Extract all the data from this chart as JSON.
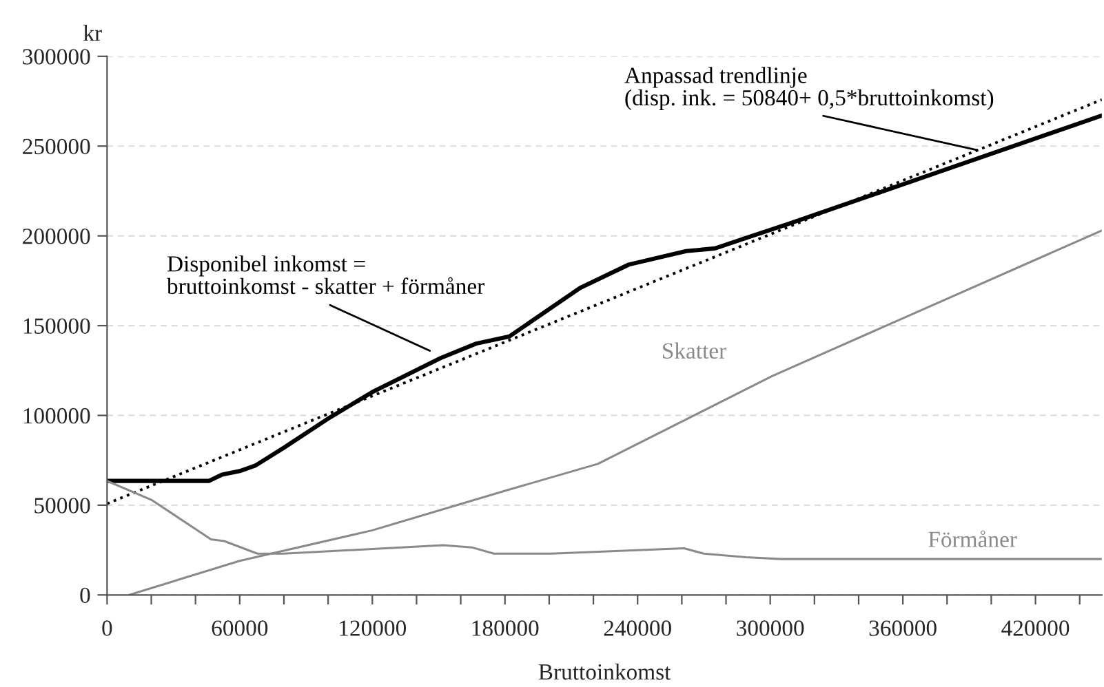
{
  "chart_data": {
    "type": "line",
    "xlabel": "Bruttoinkomst",
    "ylabel": "kr",
    "xlim": [
      0,
      450000
    ],
    "ylim": [
      0,
      300000
    ],
    "xticks": [
      0,
      {
        "value": 20000,
        "label": null
      },
      {
        "value": 40000,
        "label": null
      },
      60000,
      {
        "value": 80000,
        "label": null
      },
      {
        "value": 100000,
        "label": null
      },
      120000,
      {
        "value": 140000,
        "label": null
      },
      {
        "value": 160000,
        "label": null
      },
      180000,
      {
        "value": 200000,
        "label": null
      },
      {
        "value": 220000,
        "label": null
      },
      240000,
      {
        "value": 260000,
        "label": null
      },
      {
        "value": 280000,
        "label": null
      },
      300000,
      {
        "value": 320000,
        "label": null
      },
      {
        "value": 340000,
        "label": null
      },
      360000,
      {
        "value": 380000,
        "label": null
      },
      {
        "value": 400000,
        "label": null
      },
      420000,
      {
        "value": 440000,
        "label": null
      }
    ],
    "yticks": [
      0,
      50000,
      100000,
      150000,
      200000,
      250000,
      300000
    ],
    "grid": "y",
    "legend": false,
    "series": [
      {
        "name": "Disponibel inkomst =\nbruttoinkomst - skatter + förmåner",
        "color": "#000000",
        "line_style": "solid",
        "x": [
          0,
          46000,
          52000,
          60000,
          67000,
          80000,
          101000,
          120000,
          151000,
          167000,
          182000,
          214000,
          236000,
          262000,
          275000,
          287000,
          309000,
          450000
        ],
        "values": [
          63500,
          63500,
          67000,
          69000,
          72000,
          82000,
          99000,
          113000,
          132000,
          140000,
          144000,
          171000,
          184000,
          191500,
          193000,
          198000,
          207000,
          267000
        ]
      },
      {
        "name": "Anpassad trendlinje\n(disp. ink. = 50840+ 0,5*bruttoinkomst)",
        "color": "#000000",
        "line_style": "dotted",
        "x": [
          0,
          450000
        ],
        "values": [
          50840,
          275840
        ]
      },
      {
        "name": "Skatter",
        "color": "#8a8a8a",
        "line_style": "solid",
        "x": [
          10000,
          60000,
          120000,
          180000,
          222000,
          301000,
          450000
        ],
        "values": [
          0,
          19000,
          36000,
          58000,
          73000,
          122000,
          203000
        ]
      },
      {
        "name": "Förmåner",
        "color": "#8a8a8a",
        "line_style": "solid",
        "x": [
          0,
          20000,
          47000,
          53000,
          68000,
          80000,
          152000,
          165000,
          175000,
          201000,
          261000,
          270000,
          289000,
          305000,
          450000
        ],
        "values": [
          63500,
          53000,
          31000,
          30000,
          23000,
          23000,
          27700,
          26500,
          23000,
          23000,
          26000,
          23000,
          21000,
          20000,
          20000
        ]
      }
    ]
  }
}
